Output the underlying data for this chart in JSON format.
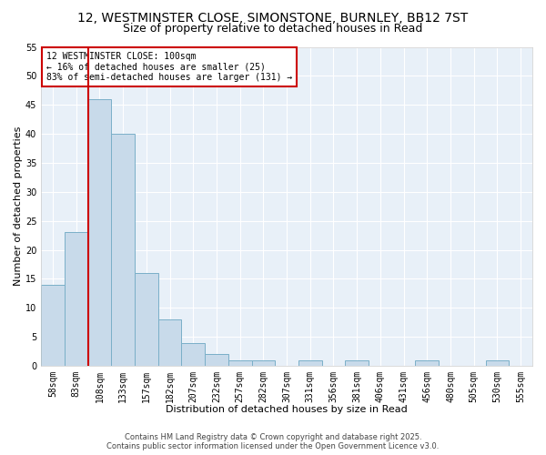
{
  "title_line1": "12, WESTMINSTER CLOSE, SIMONSTONE, BURNLEY, BB12 7ST",
  "title_line2": "Size of property relative to detached houses in Read",
  "categories": [
    "58sqm",
    "83sqm",
    "108sqm",
    "133sqm",
    "157sqm",
    "182sqm",
    "207sqm",
    "232sqm",
    "257sqm",
    "282sqm",
    "307sqm",
    "331sqm",
    "356sqm",
    "381sqm",
    "406sqm",
    "431sqm",
    "456sqm",
    "480sqm",
    "505sqm",
    "530sqm",
    "555sqm"
  ],
  "values": [
    14,
    23,
    46,
    40,
    16,
    8,
    4,
    2,
    1,
    1,
    0,
    1,
    0,
    1,
    0,
    0,
    1,
    0,
    0,
    1,
    0
  ],
  "bar_color": "#c8daea",
  "bar_edge_color": "#7aafc8",
  "highlight_index": 2,
  "highlight_line_color": "#cc0000",
  "annotation_text": "12 WESTMINSTER CLOSE: 100sqm\n← 16% of detached houses are smaller (25)\n83% of semi-detached houses are larger (131) →",
  "annotation_box_color": "#ffffff",
  "annotation_box_edge_color": "#cc0000",
  "xlabel": "Distribution of detached houses by size in Read",
  "ylabel": "Number of detached properties",
  "ylim": [
    0,
    55
  ],
  "yticks": [
    0,
    5,
    10,
    15,
    20,
    25,
    30,
    35,
    40,
    45,
    50,
    55
  ],
  "background_color": "#ffffff",
  "plot_bg_color": "#e8f0f8",
  "grid_color": "#ffffff",
  "footer_line1": "Contains HM Land Registry data © Crown copyright and database right 2025.",
  "footer_line2": "Contains public sector information licensed under the Open Government Licence v3.0.",
  "title_fontsize": 10,
  "subtitle_fontsize": 9,
  "axis_label_fontsize": 8,
  "tick_fontsize": 7,
  "annotation_fontsize": 7,
  "footer_fontsize": 6
}
